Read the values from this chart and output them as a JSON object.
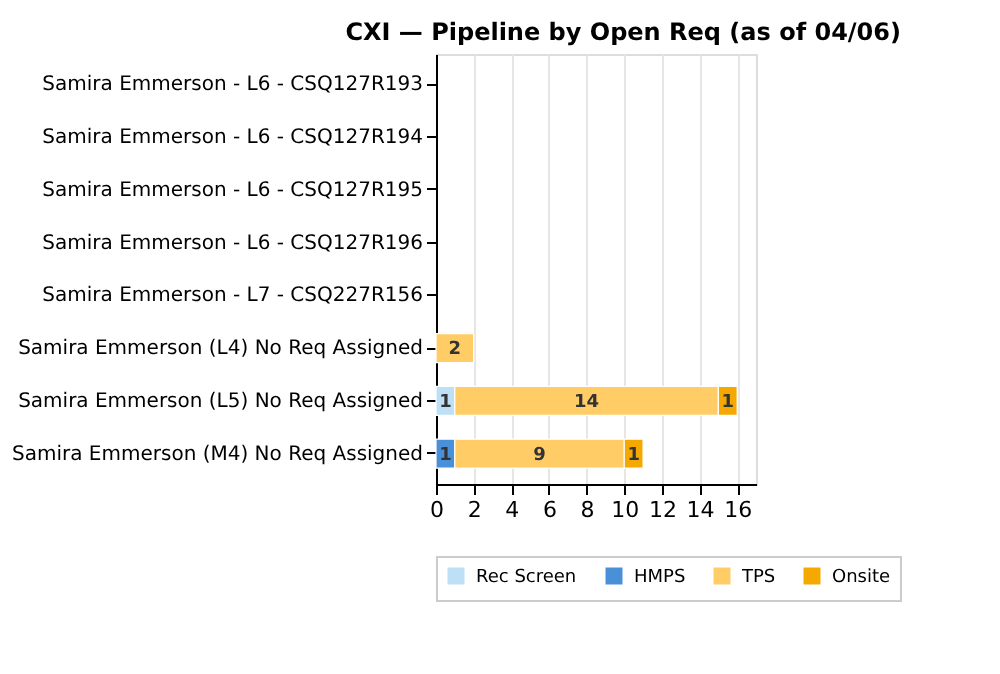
{
  "chart_data": {
    "type": "bar",
    "orientation": "horizontal",
    "stacked": true,
    "title": "CXI — Pipeline by Open Req (as of 04/06)",
    "categories": [
      "Samira Emmerson - L6 - CSQ127R193",
      "Samira Emmerson - L6 - CSQ127R194",
      "Samira Emmerson - L6 - CSQ127R195",
      "Samira Emmerson - L6 - CSQ127R196",
      "Samira Emmerson - L7 - CSQ227R156",
      "Samira Emmerson (L4) No Req Assigned",
      "Samira Emmerson (L5) No Req Assigned",
      "Samira Emmerson (M4) No Req Assigned"
    ],
    "series": [
      {
        "name": "Rec Screen",
        "color": "#bde0f6",
        "values": [
          null,
          null,
          null,
          null,
          null,
          null,
          1,
          null
        ]
      },
      {
        "name": "HMPS",
        "color": "#4a90d9",
        "values": [
          null,
          null,
          null,
          null,
          null,
          null,
          null,
          1
        ]
      },
      {
        "name": "TPS",
        "color": "#ffcc66",
        "values": [
          null,
          null,
          null,
          null,
          null,
          2,
          14,
          9
        ]
      },
      {
        "name": "Onsite",
        "color": "#f5a800",
        "values": [
          null,
          null,
          null,
          null,
          null,
          null,
          1,
          1
        ]
      }
    ],
    "xlim": [
      0,
      17
    ],
    "xticks": [
      0,
      2,
      4,
      6,
      8,
      10,
      12,
      14,
      16
    ],
    "grid": "x",
    "legend": "bottom",
    "data_labels": true
  }
}
